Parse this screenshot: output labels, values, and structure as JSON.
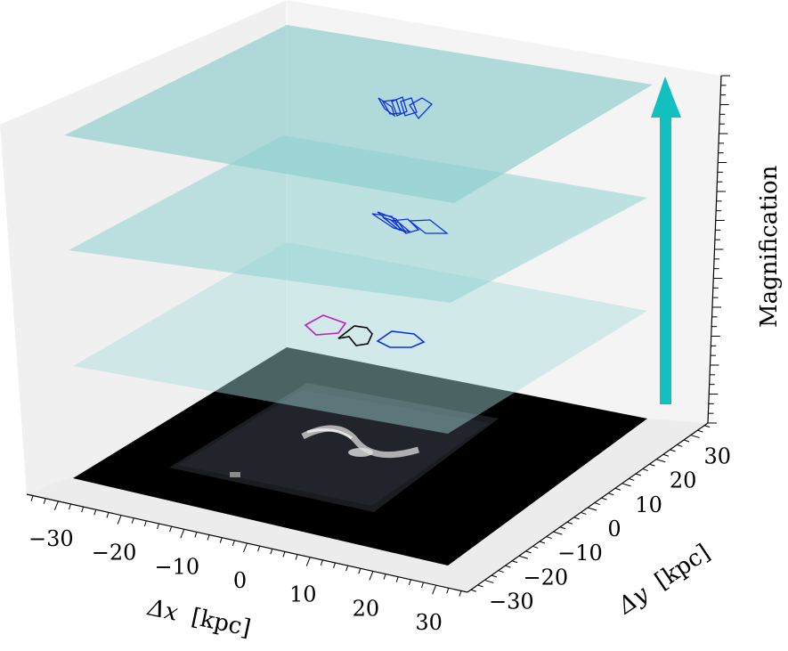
{
  "chart_data": {
    "type": "3d-stacked-planes",
    "xlabel_symbol": "Δx",
    "xlabel_unit": "[kpc]",
    "ylabel_symbol": "Δy",
    "ylabel_unit": "[kpc]",
    "zlabel": "Magnification",
    "x_ticks": [
      "−30",
      "−20",
      "−10",
      "0",
      "10",
      "20",
      "30"
    ],
    "y_ticks": [
      "−30",
      "−20",
      "−10",
      "0",
      "10",
      "20",
      "30"
    ],
    "x_tick_values": [
      -30,
      -20,
      -10,
      0,
      10,
      20,
      30
    ],
    "y_tick_values": [
      -30,
      -20,
      -10,
      0,
      10,
      20,
      30
    ],
    "xlim": [
      -35,
      35
    ],
    "ylim": [
      -35,
      35
    ],
    "planes": [
      {
        "level": 0,
        "kind": "image",
        "color": "#000000"
      },
      {
        "level": 1,
        "kind": "plane",
        "color": "#a6dcdc"
      },
      {
        "level": 2,
        "kind": "plane",
        "color": "#8fd2d2"
      },
      {
        "level": 3,
        "kind": "plane",
        "color": "#8ccdcd"
      }
    ],
    "arrow_color": "#12c0c0",
    "outline_colors": {
      "magenta": "#c020c0",
      "black": "#000000",
      "blue": "#1030e0"
    }
  }
}
